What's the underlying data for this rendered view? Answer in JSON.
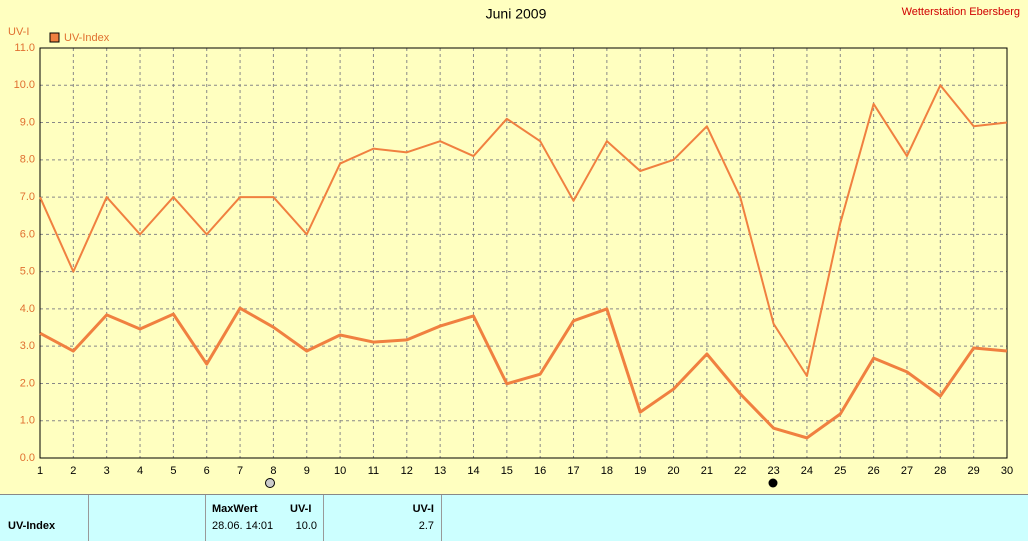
{
  "chart_data": {
    "type": "line",
    "title": "Juni 2009",
    "subtitle": "Wetterstation Ebersberg",
    "y_label": "UV-I",
    "x": [
      1,
      2,
      3,
      4,
      5,
      6,
      7,
      8,
      9,
      10,
      11,
      12,
      13,
      14,
      15,
      16,
      17,
      18,
      19,
      20,
      21,
      22,
      23,
      24,
      25,
      26,
      27,
      28,
      29,
      30
    ],
    "series": [
      {
        "name": "UV-Index",
        "color": "#f08040",
        "values": [
          3.35,
          2.87,
          3.84,
          3.46,
          3.86,
          2.52,
          4.02,
          3.51,
          2.87,
          3.3,
          3.11,
          3.17,
          3.54,
          3.81,
          1.99,
          2.25,
          3.68,
          4.0,
          1.23,
          1.85,
          2.79,
          1.72,
          0.8,
          0.54,
          1.18,
          2.68,
          2.31,
          1.66,
          2.95,
          2.87
        ]
      },
      {
        "color": "#f08040",
        "values": [
          7.0,
          5.0,
          7.0,
          6.0,
          7.0,
          6.0,
          7.0,
          7.0,
          6.0,
          7.9,
          8.3,
          8.2,
          8.5,
          8.1,
          9.1,
          8.5,
          6.9,
          8.5,
          7.7,
          8.0,
          8.9,
          7.0,
          3.6,
          2.2,
          6.3,
          9.5,
          8.1,
          10.0,
          8.9,
          9.0
        ]
      }
    ],
    "xlim": [
      1,
      30
    ],
    "xticks": [
      1,
      2,
      3,
      4,
      5,
      6,
      7,
      8,
      9,
      10,
      11,
      12,
      13,
      14,
      15,
      16,
      17,
      18,
      19,
      20,
      21,
      22,
      23,
      24,
      25,
      26,
      27,
      28,
      29,
      30
    ],
    "ylim": [
      0,
      11
    ],
    "yticks": [
      {
        "value": 0,
        "label": "0.0"
      },
      {
        "value": 1,
        "label": "1.0"
      },
      {
        "value": 2,
        "label": "2.0"
      },
      {
        "value": 3,
        "label": "3.0"
      },
      {
        "value": 4,
        "label": "4.0"
      },
      {
        "value": 5,
        "label": "5.0"
      },
      {
        "value": 6,
        "label": "6.0"
      },
      {
        "value": 7,
        "label": "7.0"
      },
      {
        "value": 8,
        "label": "8.0"
      },
      {
        "value": 9,
        "label": "9.0"
      },
      {
        "value": 10,
        "label": "10.0"
      },
      {
        "value": 11,
        "label": "11.0"
      }
    ],
    "grid": true
  },
  "table": {
    "columns": [
      "MaxWert",
      "UV-I",
      "UV-I"
    ],
    "rows": [
      [
        "UV-Index",
        "28.06. 14:01",
        "10.0",
        "2.7"
      ]
    ]
  }
}
